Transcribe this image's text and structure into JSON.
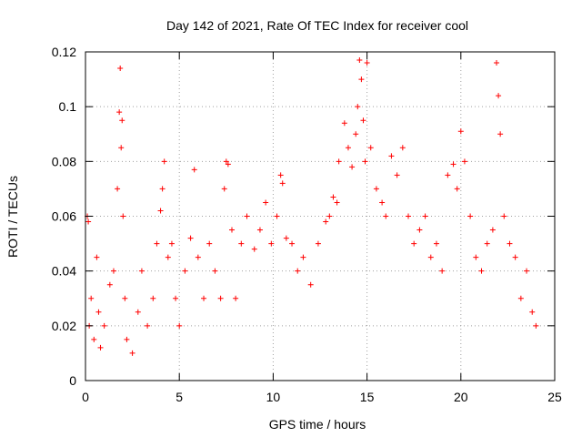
{
  "chart_data": {
    "type": "scatter",
    "title": "Day 142 of 2021, Rate Of TEC Index for receiver cool",
    "xlabel": "GPS time / hours",
    "ylabel": "ROTI / TECUs",
    "xlim": [
      0,
      25
    ],
    "ylim": [
      0,
      0.12
    ],
    "xticks": [
      0,
      5,
      10,
      15,
      20,
      25
    ],
    "xtick_labels": [
      "0",
      "5",
      "10",
      "15",
      "20",
      "25"
    ],
    "yticks": [
      0,
      0.02,
      0.04,
      0.06,
      0.08,
      0.1,
      0.12
    ],
    "ytick_labels": [
      "0",
      "0.02",
      "0.04",
      "0.06",
      "0.08",
      "0.1",
      "0.12"
    ],
    "grid": true,
    "marker": "+",
    "series": [
      {
        "name": "ROTI",
        "color": "#ff0000",
        "x": [
          0.1,
          0.15,
          0.2,
          0.3,
          0.45,
          0.6,
          0.7,
          0.8,
          1.0,
          1.3,
          1.5,
          1.7,
          1.8,
          1.85,
          1.9,
          1.95,
          2.0,
          2.1,
          2.2,
          2.5,
          2.8,
          3.0,
          3.3,
          3.6,
          3.8,
          4.0,
          4.1,
          4.2,
          4.4,
          4.6,
          4.8,
          5.0,
          5.3,
          5.6,
          5.8,
          6.0,
          6.3,
          6.6,
          6.9,
          7.2,
          7.4,
          7.5,
          7.6,
          7.8,
          8.0,
          8.3,
          8.6,
          9.0,
          9.3,
          9.6,
          9.9,
          10.2,
          10.4,
          10.5,
          10.7,
          11.0,
          11.3,
          11.6,
          12.0,
          12.4,
          12.8,
          13.0,
          13.2,
          13.4,
          13.5,
          13.8,
          14.0,
          14.2,
          14.4,
          14.5,
          14.6,
          14.7,
          14.8,
          14.9,
          15.0,
          15.2,
          15.5,
          15.8,
          16.0,
          16.3,
          16.6,
          16.9,
          17.2,
          17.5,
          17.8,
          18.1,
          18.4,
          18.7,
          19.0,
          19.3,
          19.6,
          19.8,
          20.0,
          20.2,
          20.5,
          20.8,
          21.1,
          21.4,
          21.7,
          21.9,
          22.0,
          22.1,
          22.3,
          22.6,
          22.9,
          23.2,
          23.5,
          23.8,
          24.0
        ],
        "y": [
          0.06,
          0.058,
          0.02,
          0.03,
          0.015,
          0.045,
          0.025,
          0.012,
          0.02,
          0.035,
          0.04,
          0.07,
          0.098,
          0.114,
          0.085,
          0.095,
          0.06,
          0.03,
          0.015,
          0.01,
          0.025,
          0.04,
          0.02,
          0.03,
          0.05,
          0.062,
          0.07,
          0.08,
          0.045,
          0.05,
          0.03,
          0.02,
          0.04,
          0.052,
          0.077,
          0.045,
          0.03,
          0.05,
          0.04,
          0.03,
          0.07,
          0.08,
          0.079,
          0.055,
          0.03,
          0.05,
          0.06,
          0.048,
          0.055,
          0.065,
          0.05,
          0.06,
          0.075,
          0.072,
          0.052,
          0.05,
          0.04,
          0.045,
          0.035,
          0.05,
          0.058,
          0.06,
          0.067,
          0.065,
          0.08,
          0.094,
          0.085,
          0.078,
          0.09,
          0.1,
          0.117,
          0.11,
          0.095,
          0.08,
          0.116,
          0.085,
          0.07,
          0.065,
          0.06,
          0.082,
          0.075,
          0.085,
          0.06,
          0.05,
          0.055,
          0.06,
          0.045,
          0.05,
          0.04,
          0.075,
          0.079,
          0.07,
          0.091,
          0.08,
          0.06,
          0.045,
          0.04,
          0.05,
          0.055,
          0.116,
          0.104,
          0.09,
          0.06,
          0.05,
          0.045,
          0.03,
          0.04,
          0.025,
          0.02
        ]
      }
    ]
  }
}
